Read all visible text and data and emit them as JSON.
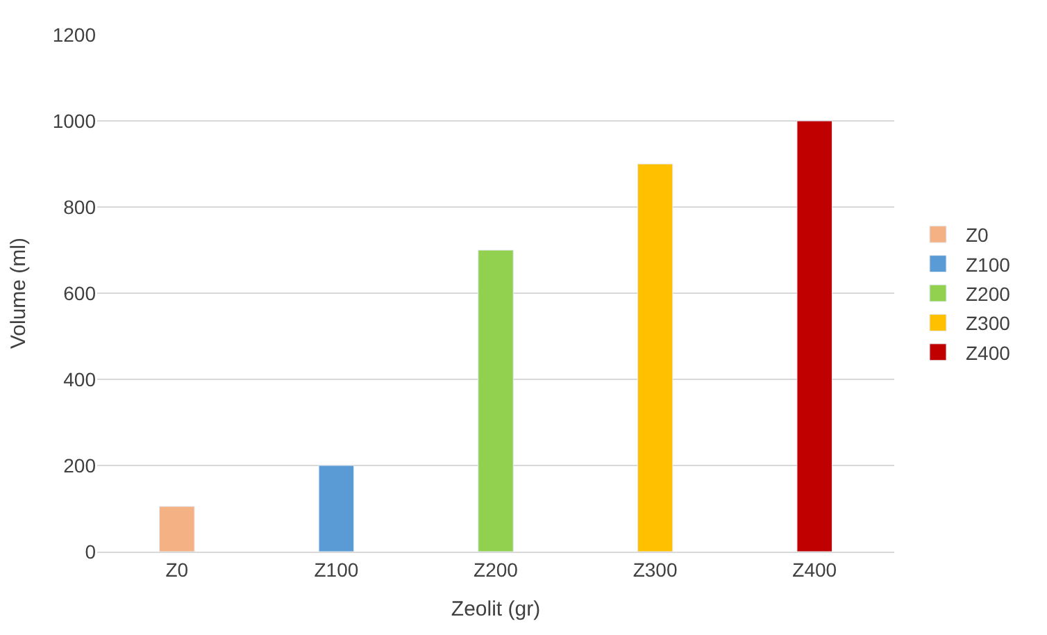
{
  "chart_data": {
    "type": "bar",
    "xlabel": "Zeolit (gr)",
    "ylabel": "Volume (ml)",
    "categories": [
      "Z0",
      "Z100",
      "Z200",
      "Z300",
      "Z400"
    ],
    "series": [
      {
        "name": "Z0",
        "color": "#f4b183",
        "values": [
          105,
          null,
          null,
          null,
          null
        ]
      },
      {
        "name": "Z100",
        "color": "#5b9bd5",
        "values": [
          null,
          200,
          null,
          null,
          null
        ]
      },
      {
        "name": "Z200",
        "color": "#92d050",
        "values": [
          null,
          null,
          700,
          null,
          null
        ]
      },
      {
        "name": "Z300",
        "color": "#ffc000",
        "values": [
          null,
          null,
          null,
          900,
          null
        ]
      },
      {
        "name": "Z400",
        "color": "#c00000",
        "values": [
          null,
          null,
          null,
          null,
          1000
        ]
      }
    ],
    "ylim": [
      0,
      1200
    ],
    "yticks": [
      0,
      200,
      400,
      600,
      800,
      1000,
      1200
    ],
    "grid": "y",
    "legend": "right"
  }
}
